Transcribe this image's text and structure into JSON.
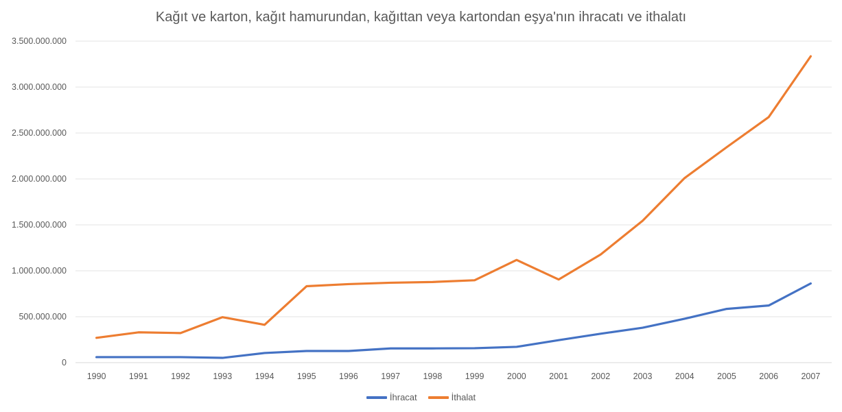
{
  "chart_data": {
    "type": "line",
    "title": "Kağıt ve karton, kağıt hamurundan, kağıttan veya kartondan eşya'nın ihracatı ve ithalatı",
    "xlabel": "",
    "ylabel": "",
    "ylim": [
      0,
      3500000000
    ],
    "y_ticks": [
      0,
      500000000,
      1000000000,
      1500000000,
      2000000000,
      2500000000,
      3000000000,
      3500000000
    ],
    "y_tick_labels": [
      "0",
      "500.000.000",
      "1.000.000.000",
      "1.500.000.000",
      "2.000.000.000",
      "2.500.000.000",
      "3.000.000.000",
      "3.500.000.000"
    ],
    "x": [
      "1990",
      "1991",
      "1992",
      "1993",
      "1994",
      "1995",
      "1996",
      "1997",
      "1998",
      "1999",
      "2000",
      "2001",
      "2002",
      "2003",
      "2004",
      "2005",
      "2006",
      "2007"
    ],
    "grid": true,
    "legend_position": "bottom",
    "series": [
      {
        "name": "İhracat",
        "color": "#4472C4",
        "values": [
          60000000,
          60000000,
          60000000,
          52000000,
          105000000,
          127000000,
          127000000,
          155000000,
          155000000,
          157000000,
          172000000,
          245000000,
          315000000,
          380000000,
          478000000,
          585000000,
          622000000,
          862000000
        ]
      },
      {
        "name": "İthalat",
        "color": "#ED7D31",
        "values": [
          270000000,
          330000000,
          322000000,
          495000000,
          412000000,
          832000000,
          855000000,
          870000000,
          878000000,
          897000000,
          1118000000,
          905000000,
          1177000000,
          1545000000,
          2010000000,
          2345000000,
          2673000000,
          3335000000
        ]
      }
    ]
  }
}
